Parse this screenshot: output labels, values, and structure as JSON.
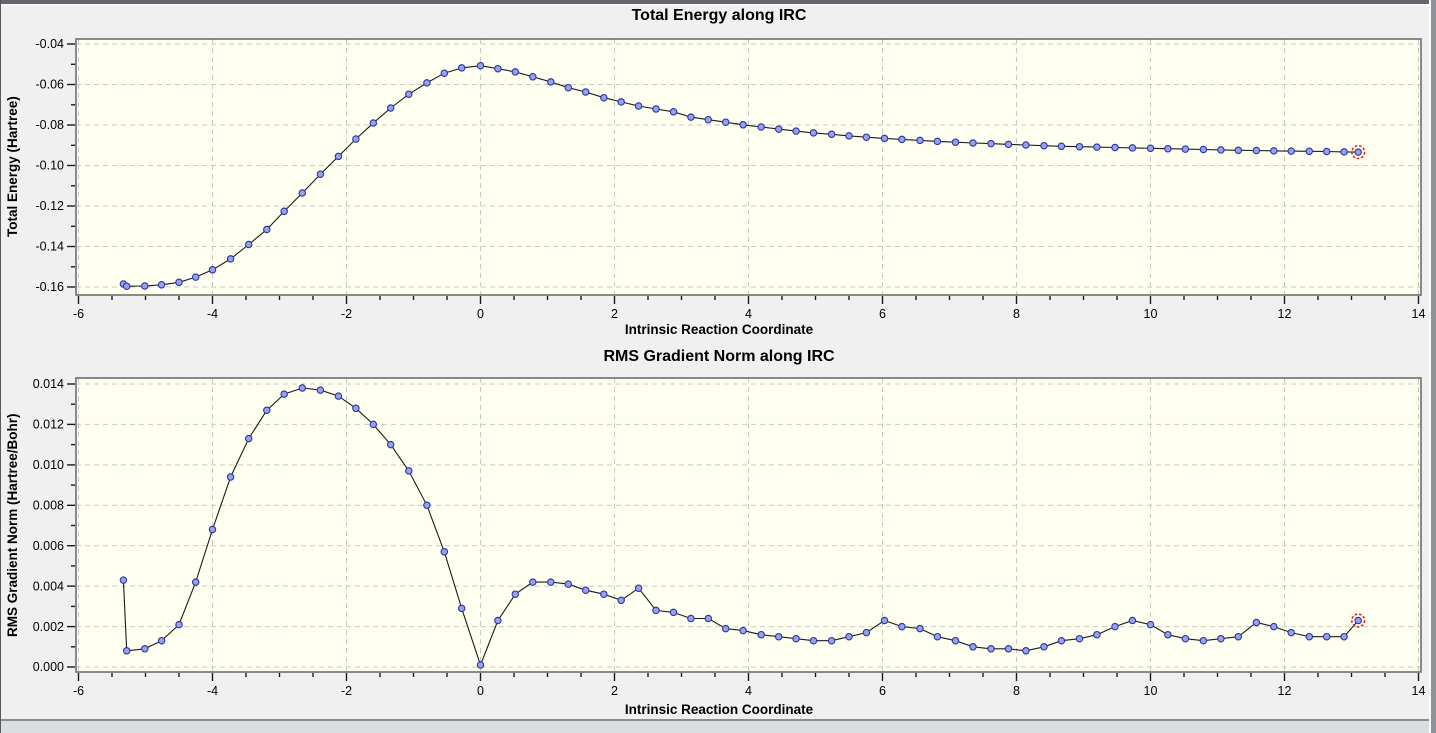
{
  "window": {
    "background": "#f0f0f1",
    "top_border_color": "#62666d",
    "side_border_color": "#8d929b"
  },
  "colors": {
    "plot_bg": "#fffff0",
    "grid": "#c9c9c9",
    "frame": "#6e6e6e",
    "tick": "#1a1a1a",
    "line": "#1a1a1a",
    "marker_fill": "#98a2e6",
    "marker_edge": "#2a34a6",
    "selected_ring": "#e02323",
    "text": "#000000"
  },
  "chart_data": [
    {
      "type": "line",
      "title": "Total Energy along IRC",
      "xlabel": "Intrinsic Reaction Coordinate",
      "ylabel": "Total Energy (Hartree)",
      "grid": true,
      "legend": null,
      "xlim": [
        -6.037,
        14.037
      ],
      "ylim": [
        -0.16395,
        -0.03753
      ],
      "xticks": [
        -6,
        -4,
        -2,
        0,
        2,
        4,
        6,
        8,
        10,
        12,
        14
      ],
      "xtick_labels": [
        "-6",
        "-4",
        "-2",
        "0",
        "2",
        "4",
        "6",
        "8",
        "10",
        "12",
        "14"
      ],
      "yticks": [
        -0.04,
        -0.06,
        -0.08,
        -0.1,
        -0.12,
        -0.14,
        -0.16
      ],
      "ytick_labels": [
        "-0.04",
        "-0.06",
        "-0.08",
        "-0.10",
        "-0.12",
        "-0.14",
        "-0.16"
      ],
      "x_minor_step": 0.5,
      "y_minor_step": 0.01,
      "selected_point_index": 71,
      "series": [
        {
          "name": "Total Energy",
          "x": [
            -5.33,
            -5.28,
            -5.01,
            -4.76,
            -4.5,
            -4.25,
            -4.0,
            -3.73,
            -3.46,
            -3.19,
            -2.93,
            -2.66,
            -2.39,
            -2.12,
            -1.86,
            -1.6,
            -1.34,
            -1.07,
            -0.8,
            -0.54,
            -0.28,
            0.0,
            0.26,
            0.52,
            0.78,
            1.05,
            1.31,
            1.57,
            1.84,
            2.1,
            2.36,
            2.62,
            2.88,
            3.14,
            3.4,
            3.66,
            3.92,
            4.19,
            4.45,
            4.71,
            4.97,
            5.24,
            5.5,
            5.76,
            6.03,
            6.29,
            6.56,
            6.82,
            7.09,
            7.35,
            7.62,
            7.88,
            8.14,
            8.41,
            8.67,
            8.94,
            9.2,
            9.47,
            9.73,
            10.0,
            10.26,
            10.52,
            10.79,
            11.05,
            11.31,
            11.58,
            11.84,
            12.1,
            12.37,
            12.63,
            12.89,
            13.1
          ],
          "y": [
            -0.1585,
            -0.1596,
            -0.1595,
            -0.1589,
            -0.1577,
            -0.1551,
            -0.1515,
            -0.1461,
            -0.139,
            -0.1316,
            -0.1226,
            -0.1136,
            -0.1043,
            -0.0955,
            -0.0869,
            -0.079,
            -0.0716,
            -0.0648,
            -0.0592,
            -0.0544,
            -0.0518,
            -0.0507,
            -0.0522,
            -0.0538,
            -0.0562,
            -0.0587,
            -0.0616,
            -0.0637,
            -0.0665,
            -0.0686,
            -0.0706,
            -0.0721,
            -0.0735,
            -0.0761,
            -0.0774,
            -0.0786,
            -0.0799,
            -0.081,
            -0.082,
            -0.083,
            -0.0839,
            -0.0846,
            -0.0854,
            -0.086,
            -0.0866,
            -0.0871,
            -0.0876,
            -0.0881,
            -0.0885,
            -0.0889,
            -0.0892,
            -0.0896,
            -0.0899,
            -0.0902,
            -0.0905,
            -0.0907,
            -0.0909,
            -0.0911,
            -0.0913,
            -0.0915,
            -0.0917,
            -0.0919,
            -0.0921,
            -0.0923,
            -0.0925,
            -0.0926,
            -0.0928,
            -0.0929,
            -0.093,
            -0.0931,
            -0.0933,
            -0.0934
          ]
        }
      ]
    },
    {
      "type": "line",
      "title": "RMS Gradient Norm along IRC",
      "xlabel": "Intrinsic Reaction Coordinate",
      "ylabel": "RMS Gradient Norm (Hartree/Bohr)",
      "grid": true,
      "legend": null,
      "xlim": [
        -6.037,
        14.037
      ],
      "ylim": [
        -0.000247,
        0.014297
      ],
      "xticks": [
        -6,
        -4,
        -2,
        0,
        2,
        4,
        6,
        8,
        10,
        12,
        14
      ],
      "xtick_labels": [
        "-6",
        "-4",
        "-2",
        "0",
        "2",
        "4",
        "6",
        "8",
        "10",
        "12",
        "14"
      ],
      "yticks": [
        0.0,
        0.002,
        0.004,
        0.006,
        0.008,
        0.01,
        0.012,
        0.014
      ],
      "ytick_labels": [
        "0.000",
        "0.002",
        "0.004",
        "0.006",
        "0.008",
        "0.010",
        "0.012",
        "0.014"
      ],
      "x_minor_step": 0.5,
      "y_minor_step": 0.001,
      "selected_point_index": 71,
      "series": [
        {
          "name": "RMS Gradient Norm",
          "x": [
            -5.33,
            -5.28,
            -5.01,
            -4.76,
            -4.5,
            -4.25,
            -4.0,
            -3.73,
            -3.46,
            -3.19,
            -2.93,
            -2.66,
            -2.39,
            -2.12,
            -1.86,
            -1.6,
            -1.34,
            -1.07,
            -0.8,
            -0.54,
            -0.28,
            0.0,
            0.26,
            0.52,
            0.78,
            1.05,
            1.31,
            1.57,
            1.84,
            2.1,
            2.36,
            2.62,
            2.88,
            3.14,
            3.4,
            3.66,
            3.92,
            4.19,
            4.45,
            4.71,
            4.97,
            5.24,
            5.5,
            5.76,
            6.03,
            6.29,
            6.56,
            6.82,
            7.09,
            7.35,
            7.62,
            7.88,
            8.14,
            8.41,
            8.67,
            8.94,
            9.2,
            9.47,
            9.73,
            10.0,
            10.26,
            10.52,
            10.79,
            11.05,
            11.31,
            11.58,
            11.84,
            12.1,
            12.37,
            12.63,
            12.89,
            13.1
          ],
          "y": [
            0.0043,
            0.0008,
            0.0009,
            0.0013,
            0.0021,
            0.0042,
            0.0068,
            0.0094,
            0.0113,
            0.0127,
            0.0135,
            0.0138,
            0.0137,
            0.0134,
            0.0128,
            0.012,
            0.011,
            0.0097,
            0.008,
            0.0057,
            0.0029,
            0.0001,
            0.0023,
            0.0036,
            0.0042,
            0.0042,
            0.0041,
            0.0038,
            0.0036,
            0.0033,
            0.0039,
            0.0028,
            0.0027,
            0.0024,
            0.0024,
            0.0019,
            0.0018,
            0.0016,
            0.0015,
            0.0014,
            0.0013,
            0.0013,
            0.0015,
            0.0017,
            0.0023,
            0.002,
            0.0019,
            0.0015,
            0.0013,
            0.001,
            0.0009,
            0.0009,
            0.0008,
            0.001,
            0.0013,
            0.0014,
            0.0016,
            0.002,
            0.0023,
            0.0021,
            0.0016,
            0.0014,
            0.0013,
            0.0014,
            0.0015,
            0.0022,
            0.002,
            0.0017,
            0.0015,
            0.0015,
            0.0015,
            0.0023
          ]
        }
      ]
    }
  ]
}
